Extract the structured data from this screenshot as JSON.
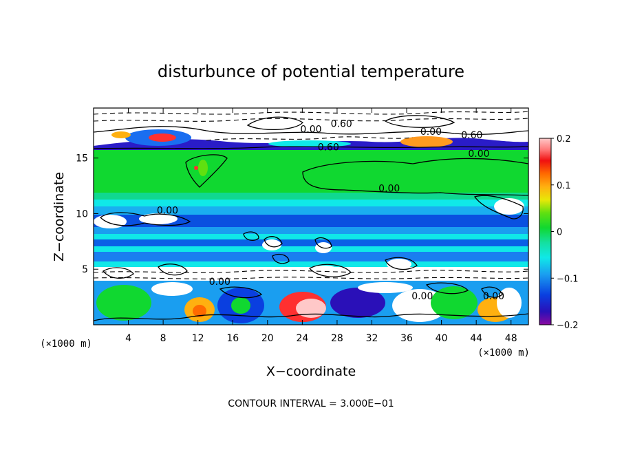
{
  "chart_data": {
    "type": "heatmap",
    "title": "disturbunce of potential temperature",
    "xlabel": "X−coordinate",
    "ylabel": "Z−coordinate",
    "x_units": "(×1000 m)",
    "x_units_right": "(×1000 m)",
    "x_ticks": [
      4,
      8,
      12,
      16,
      20,
      24,
      28,
      32,
      36,
      40,
      44,
      48
    ],
    "y_ticks": [
      5,
      10,
      15
    ],
    "xlim": [
      0,
      50
    ],
    "ylim": [
      0,
      19.5
    ],
    "colorbar": {
      "min": -0.2,
      "max": 0.2,
      "ticks": [
        {
          "v": 0.2,
          "label": "0.2"
        },
        {
          "v": 0.1,
          "label": "0.1"
        },
        {
          "v": 0,
          "label": "0"
        },
        {
          "v": -0.1,
          "label": "−0.1"
        },
        {
          "v": -0.2,
          "label": "−0.2"
        }
      ]
    },
    "contour_labels": [
      {
        "text": "0.00",
        "x": 25.0,
        "y": 17.6
      },
      {
        "text": "0.60",
        "x": 28.5,
        "y": 18.1
      },
      {
        "text": "0.60",
        "x": 27.0,
        "y": 16.0
      },
      {
        "text": "0.00",
        "x": 38.8,
        "y": 17.4
      },
      {
        "text": "0.60",
        "x": 43.5,
        "y": 17.1
      },
      {
        "text": "0.00",
        "x": 44.3,
        "y": 15.4
      },
      {
        "text": "0.00",
        "x": 34.0,
        "y": 12.3
      },
      {
        "text": "0.00",
        "x": 8.5,
        "y": 10.3
      },
      {
        "text": "0.00",
        "x": 14.5,
        "y": 3.9
      },
      {
        "text": "0.00",
        "x": 37.8,
        "y": 2.6
      },
      {
        "text": "0.00",
        "x": 46.0,
        "y": 2.6
      }
    ],
    "grid": false,
    "legend": "none"
  },
  "footer": {
    "contour_interval": "CONTOUR INTERVAL = 3.000E−01"
  }
}
